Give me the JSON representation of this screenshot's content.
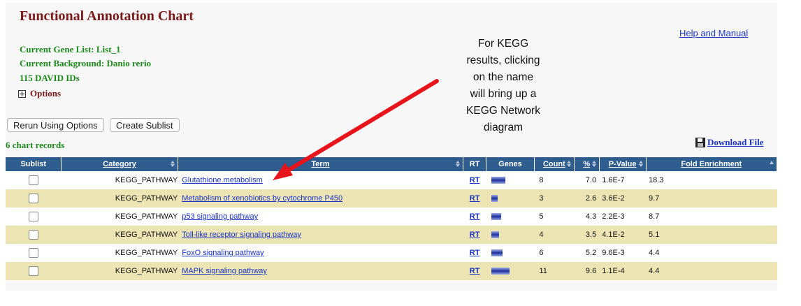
{
  "title": "Functional Annotation Chart",
  "help_link": "Help and Manual",
  "gene_list": "Current Gene List: List_1",
  "background": "Current Background: Danio rerio",
  "david_ids": "115 DAVID IDs",
  "options_label": "Options",
  "buttons": {
    "rerun": "Rerun Using Options",
    "sublist": "Create Sublist"
  },
  "records_label": "6 chart records",
  "download_label": "Download File",
  "annotation_lines": [
    "For KEGG",
    "results, clicking",
    "on the name",
    "will bring up a",
    "KEGG Network",
    "diagram"
  ],
  "table": {
    "headers": {
      "sublist": "Sublist",
      "category": "Category",
      "term": "Term",
      "rt": "RT",
      "genes": "Genes",
      "count": "Count",
      "pct": "%",
      "pvalue": "P-Value",
      "fold": "Fold Enrichment"
    },
    "rows": [
      {
        "category": "KEGG_PATHWAY",
        "term": "Glutathione metabolism",
        "rt": "RT",
        "count": "8",
        "pct": "7.0",
        "pvalue": "1.6E-7",
        "fold": "18.3"
      },
      {
        "category": "KEGG_PATHWAY",
        "term": "Metabolism of xenobiotics by cytochrome P450",
        "rt": "RT",
        "count": "3",
        "pct": "2.6",
        "pvalue": "3.6E-2",
        "fold": "9.7"
      },
      {
        "category": "KEGG_PATHWAY",
        "term": "p53 signaling pathway",
        "rt": "RT",
        "count": "5",
        "pct": "4.3",
        "pvalue": "2.2E-3",
        "fold": "8.7"
      },
      {
        "category": "KEGG_PATHWAY",
        "term": "Toll-like receptor signaling pathway",
        "rt": "RT",
        "count": "4",
        "pct": "3.5",
        "pvalue": "4.1E-2",
        "fold": "5.1"
      },
      {
        "category": "KEGG_PATHWAY",
        "term": "FoxO signaling pathway",
        "rt": "RT",
        "count": "6",
        "pct": "5.2",
        "pvalue": "9.6E-3",
        "fold": "4.4"
      },
      {
        "category": "KEGG_PATHWAY",
        "term": "MAPK signaling pathway",
        "rt": "RT",
        "count": "11",
        "pct": "9.6",
        "pvalue": "1.1E-4",
        "fold": "4.4"
      }
    ]
  },
  "colors": {
    "title": "#7a1b1b",
    "green_text": "#1c8a1c",
    "header_bg": "#2f5d8f",
    "alt_row": "#ece4b3",
    "link": "#1a35c8",
    "arrow": "#e8141c"
  },
  "icons": {
    "options_toggle": "plus-box-icon",
    "download": "floppy-disk-icon",
    "sort": "sort-arrows-icon",
    "genes": "gene-bar-icon"
  }
}
